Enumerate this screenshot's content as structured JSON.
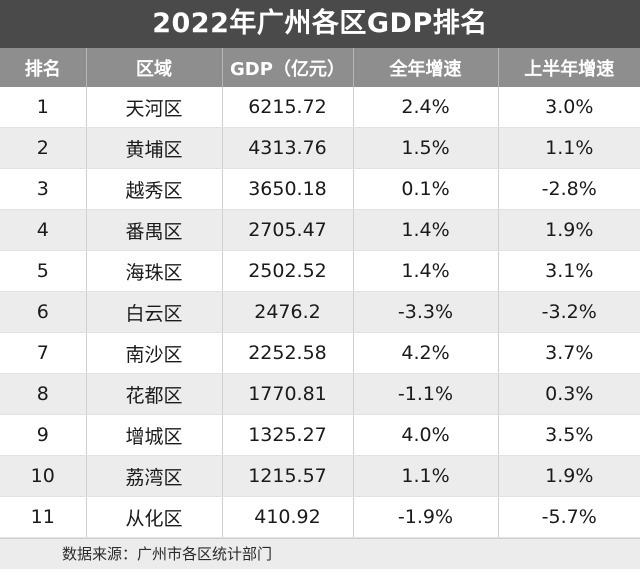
{
  "title": "2022年广州各区GDP排名",
  "columns": [
    "排名",
    "区域",
    "GDP（亿元）",
    "全年增速",
    "上半年增速"
  ],
  "rows": [
    [
      "1",
      "天河区",
      "6215.72",
      "2.4%",
      "3.0%"
    ],
    [
      "2",
      "黄埔区",
      "4313.76",
      "1.5%",
      "1.1%"
    ],
    [
      "3",
      "越秀区",
      "3650.18",
      "0.1%",
      "-2.8%"
    ],
    [
      "4",
      "番禺区",
      "2705.47",
      "1.4%",
      "1.9%"
    ],
    [
      "5",
      "海珠区",
      "2502.52",
      "1.4%",
      "3.1%"
    ],
    [
      "6",
      "白云区",
      "2476.2",
      "-3.3%",
      "-3.2%"
    ],
    [
      "7",
      "南沙区",
      "2252.58",
      "4.2%",
      "3.7%"
    ],
    [
      "8",
      "花都区",
      "1770.81",
      "-1.1%",
      "0.3%"
    ],
    [
      "9",
      "增城区",
      "1325.27",
      "4.0%",
      "3.5%"
    ],
    [
      "10",
      "荔湾区",
      "1215.57",
      "1.1%",
      "1.9%"
    ],
    [
      "11",
      "从化区",
      "410.92",
      "-1.9%",
      "-5.7%"
    ]
  ],
  "source": "数据来源：广州市各区统计部门",
  "chart_data": {
    "type": "table",
    "title": "2022年广州各区GDP排名",
    "columns": [
      "排名",
      "区域",
      "GDP（亿元）",
      "全年增速",
      "上半年增速"
    ],
    "rows": [
      [
        1,
        "天河区",
        6215.72,
        "2.4%",
        "3.0%"
      ],
      [
        2,
        "黄埔区",
        4313.76,
        "1.5%",
        "1.1%"
      ],
      [
        3,
        "越秀区",
        3650.18,
        "0.1%",
        "-2.8%"
      ],
      [
        4,
        "番禺区",
        2705.47,
        "1.4%",
        "1.9%"
      ],
      [
        5,
        "海珠区",
        2502.52,
        "1.4%",
        "3.1%"
      ],
      [
        6,
        "白云区",
        2476.2,
        "-3.3%",
        "-3.2%"
      ],
      [
        7,
        "南沙区",
        2252.58,
        "4.2%",
        "3.7%"
      ],
      [
        8,
        "花都区",
        1770.81,
        "-1.1%",
        "0.3%"
      ],
      [
        9,
        "增城区",
        1325.27,
        "4.0%",
        "3.5%"
      ],
      [
        10,
        "荔湾区",
        1215.57,
        "1.1%",
        "1.9%"
      ],
      [
        11,
        "从化区",
        410.92,
        "-1.9%",
        "-5.7%"
      ]
    ],
    "source": "数据来源：广州市各区统计部门"
  }
}
